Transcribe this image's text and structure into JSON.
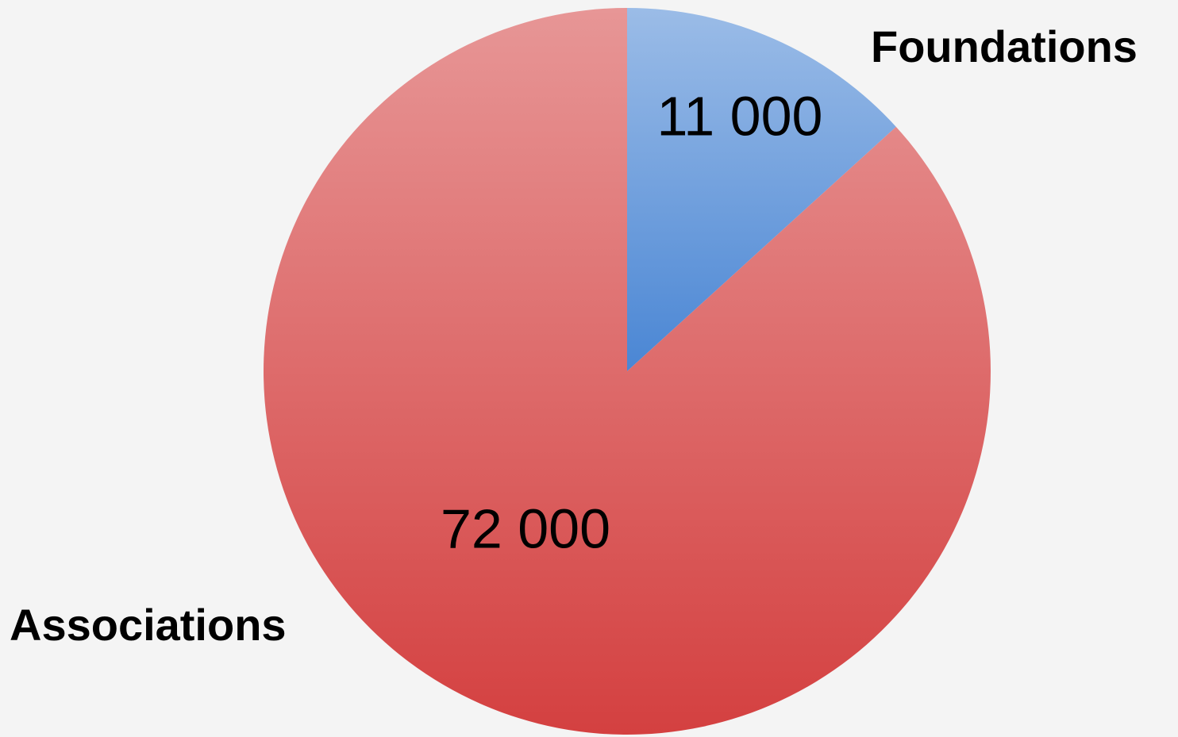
{
  "chart_data": {
    "type": "pie",
    "categories": [
      "Foundations",
      "Associations"
    ],
    "values": [
      11000,
      72000
    ],
    "value_labels": [
      "11 000",
      "72 000"
    ],
    "colors": [
      "#4a86d4",
      "#d44040"
    ]
  }
}
